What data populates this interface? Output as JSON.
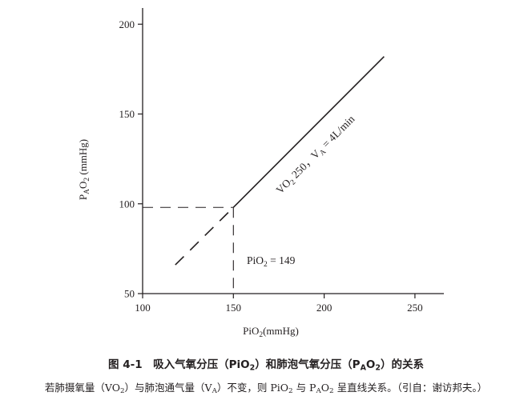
{
  "chart_data": {
    "type": "line",
    "xlabel": {
      "base": "PiO",
      "sub": "2",
      "rest": "(mmHg)"
    },
    "ylabel": {
      "p": "P",
      "sub_a": "A",
      "o": "O",
      "sub_2": "2",
      "rest": " (mmHg)"
    },
    "xlim": [
      100,
      265
    ],
    "ylim": [
      50,
      210
    ],
    "xticks": [
      100,
      150,
      200,
      250
    ],
    "yticks": [
      50,
      100,
      150,
      200
    ],
    "grid": false,
    "series": [
      {
        "name": "VO2 250, VA = 4L/min",
        "x": [
          150,
          233
        ],
        "y": [
          98,
          182
        ],
        "style": "solid"
      },
      {
        "x": [
          118,
          150
        ],
        "y": [
          66,
          98
        ],
        "style": "dashed"
      }
    ],
    "reference_lines": [
      {
        "from": [
          100,
          98
        ],
        "to": [
          150,
          98
        ],
        "style": "dashed"
      },
      {
        "from": [
          150,
          98
        ],
        "to": [
          150,
          50
        ],
        "style": "dashed"
      }
    ],
    "annotations": {
      "line_label": {
        "vo": "VO",
        "vo_sub": "2",
        "rest1": " 250，V",
        "va_sub": "A",
        "rest2": " = 4L/min"
      },
      "pio2_label": {
        "text": "PiO",
        "sub": "2",
        "rest": " = 149"
      }
    },
    "colors": {
      "ink": "#231f20"
    }
  },
  "caption": {
    "fig_prefix": "图 4-1　吸入气氧分压（PiO",
    "fig_sub1": "2",
    "fig_mid": "）和肺泡气氧分压（P",
    "fig_sub2": "A",
    "fig_mid2": "O",
    "fig_sub3": "2",
    "fig_end": "）的关系",
    "note_a": "若肺摄氧量（VO",
    "note_sub1": "2",
    "note_b": "）与肺泡通气量（V",
    "note_sub2": "A",
    "note_c": "）不变，则 PiO",
    "note_sub3": "2",
    "note_d": " 与 P",
    "note_sub4": "A",
    "note_e": "O",
    "note_sub5": "2",
    "note_f": " 呈直线关系。（引自：谢访邦夫。）"
  }
}
